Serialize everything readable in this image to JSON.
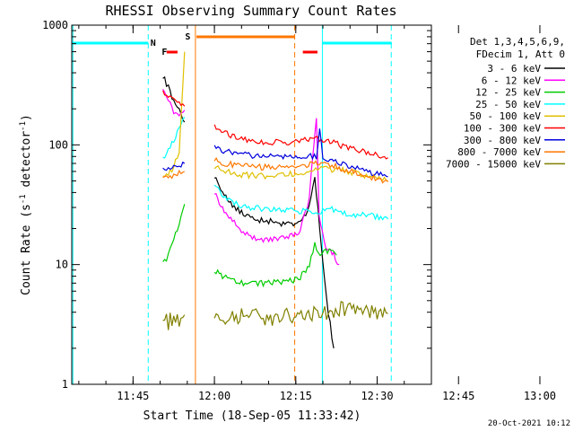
{
  "chart_data": {
    "type": "line",
    "title": "RHESSI Observing Summary Count Rates",
    "xlabel": "Start Time (18-Sep-05 11:33:42)",
    "ylabel_parts": [
      "Count Rate (s",
      "-1",
      " detector",
      "-1",
      ")"
    ],
    "yscale": "log",
    "ylim": [
      1,
      1000
    ],
    "xlim_minutes_after_1100": [
      33.7,
      100
    ],
    "x_ticks": [
      "11:45",
      "12:00",
      "12:15",
      "12:30",
      "12:45",
      "13:00"
    ],
    "y_ticks": [
      "1",
      "10",
      "100",
      "1000"
    ],
    "detector_info": [
      "Det 1,3,4,5,6,9,",
      "FDecim 1, Att 0"
    ],
    "legend_position": "right, outside plot",
    "footer": "20-Oct-2021 10:12",
    "flags": {
      "F": "F",
      "N": "N",
      "S": "S"
    },
    "series": [
      {
        "name": "3 - 6 keV",
        "color": "#000000",
        "seg1": [
          [
            50.5,
            380
          ],
          [
            51.5,
            300
          ],
          [
            52.5,
            230
          ],
          [
            53.5,
            190
          ],
          [
            54.5,
            155
          ]
        ],
        "seg2": [
          [
            60,
            55
          ],
          [
            61.5,
            40
          ],
          [
            63,
            32
          ],
          [
            65,
            27
          ],
          [
            67,
            24
          ],
          [
            70,
            23
          ],
          [
            73,
            22
          ],
          [
            75.5,
            22
          ],
          [
            77.5,
            30
          ],
          [
            78.5,
            55
          ],
          [
            80,
            10
          ],
          [
            81,
            4
          ],
          [
            82,
            2
          ]
        ]
      },
      {
        "name": "6 - 12 keV",
        "color": "#ff00ff",
        "seg1": [
          [
            50.5,
            300
          ],
          [
            51.5,
            240
          ],
          [
            52.5,
            190
          ],
          [
            53.5,
            170
          ],
          [
            54.5,
            195
          ]
        ],
        "seg2": [
          [
            60,
            40
          ],
          [
            61.5,
            30
          ],
          [
            63,
            24
          ],
          [
            65,
            19
          ],
          [
            67,
            17
          ],
          [
            70,
            16
          ],
          [
            73,
            17
          ],
          [
            75.5,
            18
          ],
          [
            77.5,
            35
          ],
          [
            78.3,
            100
          ],
          [
            78.8,
            170
          ],
          [
            79.3,
            25
          ],
          [
            80.5,
            14
          ],
          [
            82,
            12
          ],
          [
            83,
            10
          ]
        ]
      },
      {
        "name": "12 - 25 keV",
        "color": "#00cc00",
        "seg1": [
          [
            50.5,
            10
          ],
          [
            51.5,
            12
          ],
          [
            52.5,
            16
          ],
          [
            53.5,
            22
          ],
          [
            54.5,
            32
          ]
        ],
        "seg2": [
          [
            60,
            9
          ],
          [
            61.5,
            8
          ],
          [
            63,
            7.5
          ],
          [
            65,
            7
          ],
          [
            67,
            7
          ],
          [
            70,
            7
          ],
          [
            73,
            7.2
          ],
          [
            75.5,
            7.5
          ],
          [
            77.5,
            10
          ],
          [
            78.5,
            15
          ],
          [
            79.5,
            12
          ],
          [
            80.5,
            13
          ],
          [
            81.5,
            13
          ],
          [
            82.5,
            12
          ]
        ]
      },
      {
        "name": "25 - 50 keV",
        "color": "#00ffff",
        "seg1": [
          [
            50.5,
            75
          ],
          [
            51.5,
            90
          ],
          [
            52.5,
            110
          ],
          [
            53.5,
            140
          ],
          [
            54.5,
            170
          ]
        ],
        "seg2": [
          [
            60,
            45
          ],
          [
            62,
            36
          ],
          [
            64,
            32
          ],
          [
            66,
            30
          ],
          [
            70,
            29
          ],
          [
            75,
            28
          ],
          [
            78,
            28
          ],
          [
            80,
            28
          ],
          [
            82,
            29
          ],
          [
            84,
            27
          ],
          [
            86,
            26
          ],
          [
            88,
            26
          ],
          [
            90,
            25
          ],
          [
            92,
            24
          ]
        ]
      },
      {
        "name": "50 - 100 keV",
        "color": "#e0c000",
        "seg1": [
          [
            50.5,
            55
          ],
          [
            51.5,
            58
          ],
          [
            52.5,
            65
          ],
          [
            53.5,
            90
          ],
          [
            54.5,
            600
          ]
        ],
        "seg2": [
          [
            60,
            65
          ],
          [
            62,
            60
          ],
          [
            64,
            57
          ],
          [
            66,
            56
          ],
          [
            70,
            55
          ],
          [
            74,
            57
          ],
          [
            77,
            60
          ],
          [
            79,
            62
          ],
          [
            81,
            63
          ],
          [
            84,
            61
          ],
          [
            88,
            55
          ],
          [
            92,
            50
          ]
        ]
      },
      {
        "name": "100 - 300 keV",
        "color": "#ff0000",
        "seg1": [
          [
            50.5,
            280
          ],
          [
            51.5,
            260
          ],
          [
            52.5,
            240
          ],
          [
            53.5,
            220
          ],
          [
            54.5,
            210
          ]
        ],
        "seg2": [
          [
            60,
            140
          ],
          [
            62,
            125
          ],
          [
            64,
            115
          ],
          [
            66,
            110
          ],
          [
            70,
            105
          ],
          [
            74,
            105
          ],
          [
            77,
            110
          ],
          [
            79,
            112
          ],
          [
            81,
            110
          ],
          [
            83,
            100
          ],
          [
            86,
            92
          ],
          [
            89,
            85
          ],
          [
            92,
            78
          ]
        ]
      },
      {
        "name": "300 - 800 keV",
        "color": "#0000dd",
        "seg1": [
          [
            50.5,
            62
          ],
          [
            51.5,
            63
          ],
          [
            52.5,
            64
          ],
          [
            53.5,
            66
          ],
          [
            54.5,
            70
          ]
        ],
        "seg2": [
          [
            60,
            95
          ],
          [
            62,
            88
          ],
          [
            64,
            84
          ],
          [
            66,
            82
          ],
          [
            70,
            80
          ],
          [
            74,
            80
          ],
          [
            77,
            80
          ],
          [
            78.8,
            80
          ],
          [
            79.4,
            130
          ],
          [
            80,
            78
          ],
          [
            82,
            75
          ],
          [
            84,
            68
          ],
          [
            87,
            62
          ],
          [
            90,
            57
          ],
          [
            92,
            54
          ]
        ]
      },
      {
        "name": "800 - 7000 keV",
        "color": "#ff7700",
        "seg1": [
          [
            50.5,
            52
          ],
          [
            51.5,
            54
          ],
          [
            52.5,
            56
          ],
          [
            53.5,
            58
          ],
          [
            54.5,
            60
          ]
        ],
        "seg2": [
          [
            60,
            75
          ],
          [
            62,
            70
          ],
          [
            64,
            68
          ],
          [
            66,
            66
          ],
          [
            70,
            65
          ],
          [
            74,
            66
          ],
          [
            77,
            68
          ],
          [
            79,
            70
          ],
          [
            81,
            69
          ],
          [
            84,
            62
          ],
          [
            87,
            56
          ],
          [
            90,
            52
          ],
          [
            92,
            49
          ]
        ]
      },
      {
        "name": "7000 - 15000 keV",
        "color": "#808000",
        "seg1": [
          [
            50.5,
            3.5
          ],
          [
            51.5,
            3.3
          ],
          [
            52.5,
            3.6
          ],
          [
            53.5,
            3.4
          ],
          [
            54.5,
            3.8
          ]
        ],
        "seg2": [
          [
            60,
            3.8
          ],
          [
            63,
            3.6
          ],
          [
            66,
            3.7
          ],
          [
            70,
            3.6
          ],
          [
            74,
            3.7
          ],
          [
            78,
            3.8
          ],
          [
            81,
            4.1
          ],
          [
            84,
            4.3
          ],
          [
            87,
            4.1
          ],
          [
            90,
            4.0
          ],
          [
            92,
            3.9
          ]
        ]
      }
    ],
    "overlays": {
      "night_color": "#00ffff",
      "saa_color": "#ff7700",
      "flare_color": "#ff0000",
      "night_bars": [
        [
          33.7,
          47.8
        ],
        [
          79.9,
          92.7
        ]
      ],
      "night_start_lines": [
        33.9,
        79.9
      ],
      "night_end_lines": [
        47.8,
        92.6
      ],
      "saa_bar": [
        56.7,
        74.8
      ],
      "saa_start_lines": [
        56.5
      ],
      "saa_end_lines": [
        74.8
      ],
      "flare_bars": [
        [
          51.2,
          53.2
        ],
        [
          76.3,
          79.0
        ]
      ]
    }
  }
}
